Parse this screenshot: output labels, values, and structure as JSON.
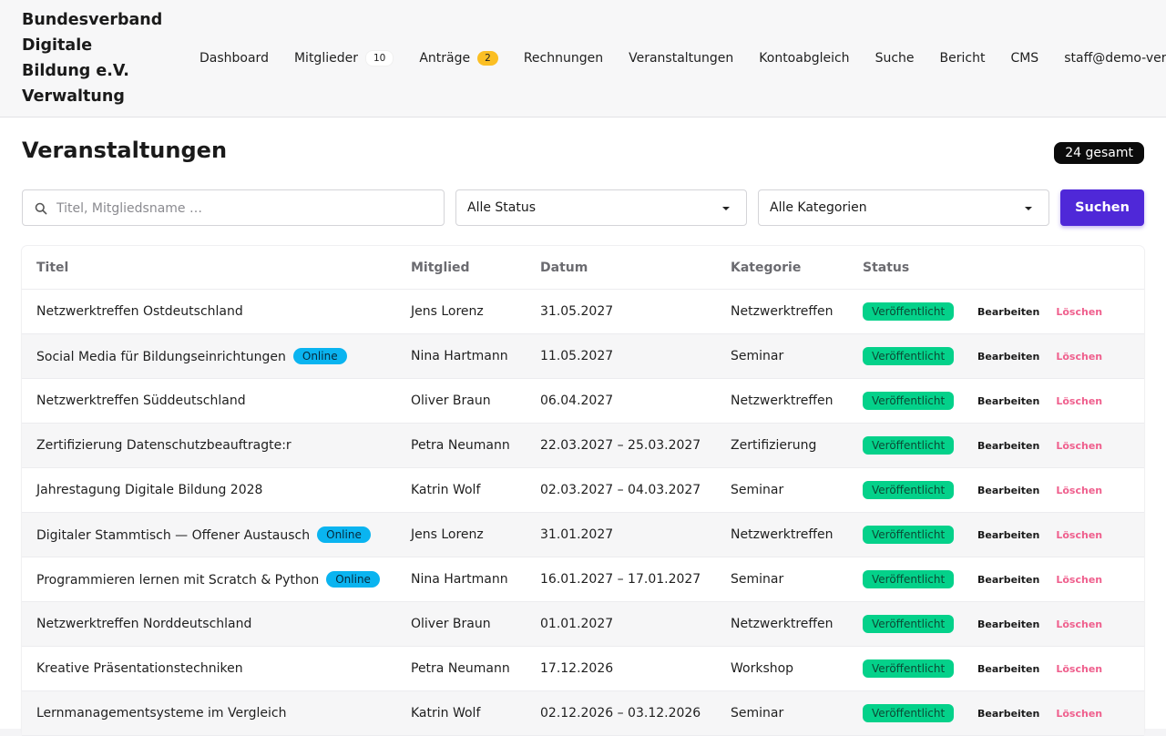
{
  "brand": {
    "lines": [
      "Bundesverband",
      "Digitale",
      "Bildung e.V.",
      "Verwaltung"
    ]
  },
  "nav": {
    "dashboard": "Dashboard",
    "mitglieder": "Mitglieder",
    "mitglieder_count": "10",
    "antraege": "Anträge",
    "antraege_count": "2",
    "rechnungen": "Rechnungen",
    "veranstaltungen": "Veranstaltungen",
    "kontoabgleich": "Kontoabgleich",
    "suche": "Suche",
    "bericht": "Bericht",
    "cms": "CMS",
    "user": "staff@demo-verb"
  },
  "page": {
    "title": "Veranstaltungen",
    "total": "24 gesamt"
  },
  "filters": {
    "search_placeholder": "Titel, Mitgliedsname …",
    "status_selected": "Alle Status",
    "category_selected": "Alle Kategorien",
    "search_button": "Suchen"
  },
  "table": {
    "headers": {
      "titel": "Titel",
      "mitglied": "Mitglied",
      "datum": "Datum",
      "kategorie": "Kategorie",
      "status": "Status"
    },
    "actions": {
      "edit": "Bearbeiten",
      "delete": "Löschen"
    },
    "online_label": "Online",
    "rows": [
      {
        "title": "Netzwerktreffen Ostdeutschland",
        "online": false,
        "member": "Jens Lorenz",
        "date": "31.05.2027",
        "category": "Netzwerktreffen",
        "status": "Veröffentlicht"
      },
      {
        "title": "Social Media für Bildungseinrichtungen",
        "online": true,
        "member": "Nina Hartmann",
        "date": "11.05.2027",
        "category": "Seminar",
        "status": "Veröffentlicht"
      },
      {
        "title": "Netzwerktreffen Süddeutschland",
        "online": false,
        "member": "Oliver Braun",
        "date": "06.04.2027",
        "category": "Netzwerktreffen",
        "status": "Veröffentlicht"
      },
      {
        "title": "Zertifizierung Datenschutzbeauftragte:r",
        "online": false,
        "member": "Petra Neumann",
        "date": "22.03.2027 – 25.03.2027",
        "category": "Zertifizierung",
        "status": "Veröffentlicht"
      },
      {
        "title": "Jahrestagung Digitale Bildung 2028",
        "online": false,
        "member": "Katrin Wolf",
        "date": "02.03.2027 – 04.03.2027",
        "category": "Seminar",
        "status": "Veröffentlicht"
      },
      {
        "title": "Digitaler Stammtisch — Offener Austausch",
        "online": true,
        "member": "Jens Lorenz",
        "date": "31.01.2027",
        "category": "Netzwerktreffen",
        "status": "Veröffentlicht"
      },
      {
        "title": "Programmieren lernen mit Scratch & Python",
        "online": true,
        "member": "Nina Hartmann",
        "date": "16.01.2027 – 17.01.2027",
        "category": "Seminar",
        "status": "Veröffentlicht"
      },
      {
        "title": "Netzwerktreffen Norddeutschland",
        "online": false,
        "member": "Oliver Braun",
        "date": "01.01.2027",
        "category": "Netzwerktreffen",
        "status": "Veröffentlicht"
      },
      {
        "title": "Kreative Präsentationstechniken",
        "online": false,
        "member": "Petra Neumann",
        "date": "17.12.2026",
        "category": "Workshop",
        "status": "Veröffentlicht"
      },
      {
        "title": "Lernmanagementsysteme im Vergleich",
        "online": false,
        "member": "Katrin Wolf",
        "date": "02.12.2026 – 03.12.2026",
        "category": "Seminar",
        "status": "Veröffentlicht"
      }
    ]
  },
  "colors": {
    "accent": "#4f28d8",
    "online": "#0ab4f0",
    "published": "#04d18a",
    "delete": "#ef5f8d",
    "antraege_badge": "#fbbf24"
  }
}
